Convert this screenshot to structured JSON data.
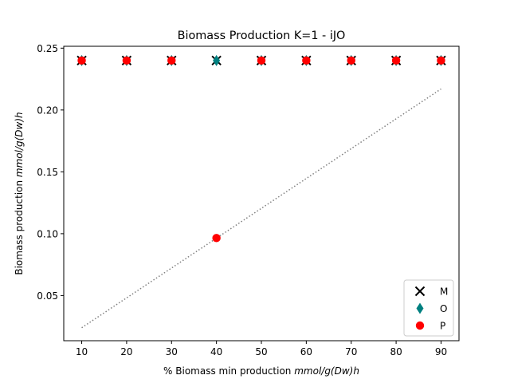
{
  "chart_data": {
    "type": "scatter",
    "title": "Biomass Production K=1 - iJO",
    "xlabel_prefix": "% Biomass min production ",
    "xlabel_unit": "mmol/g(Dw)h",
    "ylabel_prefix": "Biomass  production ",
    "ylabel_unit": "mmol/g(Dw)h",
    "xlim": [
      6,
      94
    ],
    "ylim": [
      0.0135,
      0.2515
    ],
    "x_ticks": [
      10,
      20,
      30,
      40,
      50,
      60,
      70,
      80,
      90
    ],
    "y_ticks": [
      0.05,
      0.1,
      0.15,
      0.2,
      0.25
    ],
    "y_tick_labels": [
      "0.05",
      "0.10",
      "0.15",
      "0.20",
      "0.25"
    ],
    "x": [
      10,
      20,
      30,
      40,
      50,
      60,
      70,
      80,
      90
    ],
    "series": [
      {
        "name": "M",
        "marker": "x",
        "color": "#000000",
        "values": [
          0.24,
          0.24,
          0.24,
          0.24,
          0.24,
          0.24,
          0.24,
          0.24,
          0.24
        ]
      },
      {
        "name": "O",
        "marker": "thin-diamond",
        "color": "#008080",
        "values": [
          0.24,
          0.24,
          0.24,
          0.24,
          0.24,
          0.24,
          0.24,
          0.24,
          0.24
        ]
      },
      {
        "name": "P",
        "marker": "circle",
        "color": "#ff0000",
        "values": [
          0.24,
          0.24,
          0.24,
          0.0965,
          0.24,
          0.24,
          0.24,
          0.24,
          0.24
        ]
      }
    ],
    "reference_line": {
      "style": "dotted",
      "color": "#808080",
      "x": [
        10,
        90
      ],
      "y": [
        0.024,
        0.217
      ]
    },
    "legend_position": "lower-right",
    "grid": false
  }
}
